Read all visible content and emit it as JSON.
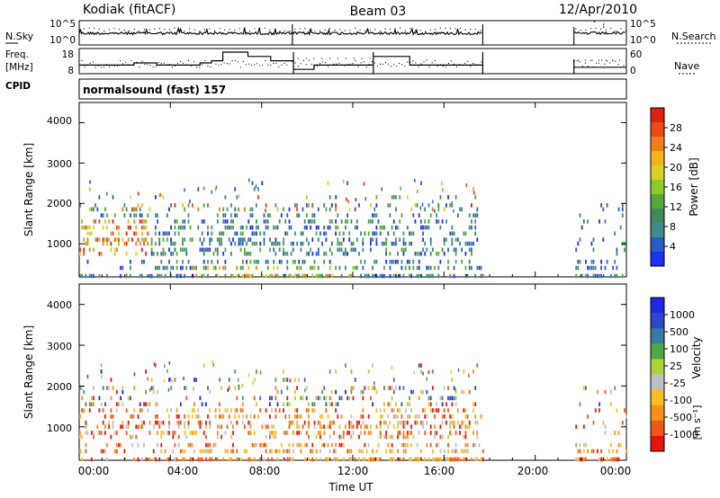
{
  "header": {
    "station": "Kodiak (fitACF)",
    "beam": "Beam 03",
    "date": "12/Apr/2010"
  },
  "side_labels": {
    "nsky": "N.Sky",
    "freq_line1": "Freq.",
    "freq_line2": "[MHz]",
    "cpid": "CPID",
    "nsearch": "N.Search",
    "nave": "Nave"
  },
  "cpid_text": "normalsound (fast) 157",
  "colors": {
    "power_scale": [
      "#1d2ff0",
      "#2a5cc8",
      "#3f8a8e",
      "#3f8a5c",
      "#56a83c",
      "#8ecb2a",
      "#d9d12a",
      "#f2b41c",
      "#f07e1a",
      "#ea4a16",
      "#e02010"
    ],
    "velocity_scale": [
      "#e4140f",
      "#f0581a",
      "#f5901c",
      "#f7be24",
      "#c0c0c0",
      "#a8d43a",
      "#4fa846",
      "#3a78a0",
      "#2c48c8",
      "#1e28e0"
    ]
  },
  "chart_data": [
    {
      "type": "line",
      "panel": "N.Sky / N.Search",
      "ytick_labels": [
        "10^5",
        "10^0"
      ],
      "yticks_right": [
        "10^5",
        "10^0"
      ],
      "legend_right": "N.Search",
      "gaps_hours": [
        [
          17.7,
          21.7
        ]
      ]
    },
    {
      "type": "line",
      "panel": "Freq / Nave",
      "yticks_left": [
        "18",
        "8"
      ],
      "yticks_right": [
        "60",
        "0"
      ],
      "ylim": [
        8,
        18
      ],
      "y2lim": [
        0,
        60
      ],
      "frequency_steps": [
        {
          "t0": 0.0,
          "t1": 2.4,
          "f": 12
        },
        {
          "t0": 2.4,
          "t1": 3.4,
          "f": 13
        },
        {
          "t0": 3.4,
          "t1": 5.3,
          "f": 12
        },
        {
          "t0": 5.3,
          "t1": 5.8,
          "f": 13
        },
        {
          "t0": 5.8,
          "t1": 6.3,
          "f": 14
        },
        {
          "t0": 6.3,
          "t1": 7.4,
          "f": 18
        },
        {
          "t0": 7.4,
          "t1": 8.4,
          "f": 16
        },
        {
          "t0": 8.4,
          "t1": 9.4,
          "f": 14
        },
        {
          "t0": 9.4,
          "t1": 10.3,
          "f": 10
        },
        {
          "t0": 10.3,
          "t1": 11.3,
          "f": 12
        },
        {
          "t0": 11.3,
          "t1": 12.9,
          "f": 12
        },
        {
          "t0": 12.9,
          "t1": 14.5,
          "f": 16
        },
        {
          "t0": 14.5,
          "t1": 17.7,
          "f": 12
        },
        {
          "t0": 21.7,
          "t1": 24.0,
          "f": 11
        }
      ]
    },
    {
      "type": "heatmap",
      "title": "",
      "xlabel": "",
      "ylabel": "Slant Range [km]",
      "yticks": [
        "1000",
        "2000",
        "3000",
        "4000"
      ],
      "ylim": [
        180,
        4500
      ],
      "xlim": [
        0,
        24
      ],
      "colorbar_label": "Power [dB]",
      "colorbar_ticks": [
        "4",
        "8",
        "12",
        "16",
        "20",
        "24",
        "28"
      ]
    },
    {
      "type": "heatmap",
      "title": "",
      "xlabel": "Time UT",
      "ylabel": "Slant Range [km]",
      "xticks": [
        "00:00",
        "04:00",
        "08:00",
        "12:00",
        "16:00",
        "20:00",
        "00:00"
      ],
      "yticks": [
        "1000",
        "2000",
        "3000",
        "4000"
      ],
      "ylim": [
        180,
        4500
      ],
      "xlim": [
        0,
        24
      ],
      "colorbar_label": "Velocity",
      "colorbar_unit": "[m s⁻¹]",
      "colorbar_ticks": [
        "-1000",
        "-500",
        "-100",
        "-25",
        "25",
        "100",
        "500",
        "1000"
      ]
    }
  ]
}
